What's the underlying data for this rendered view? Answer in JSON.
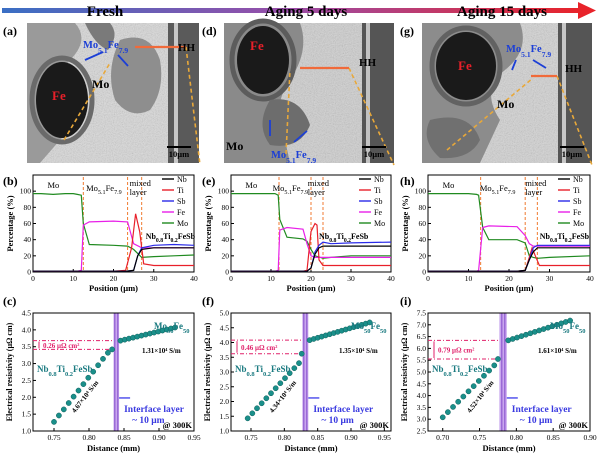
{
  "header": {
    "labels": [
      "Fresh",
      "Aging 5 days",
      "Aging 15 days"
    ],
    "arrow_gradient": [
      "#3a6fc4",
      "#8a4fa8",
      "#e8232a"
    ]
  },
  "panel_letters": [
    "(a)",
    "(b)",
    "(c)",
    "(d)",
    "(e)",
    "(f)",
    "(g)",
    "(h)",
    "(i)"
  ],
  "sem": [
    {
      "letter": "(a)",
      "phase_labels": {
        "fe": "Fe",
        "mo": "Mo",
        "mofe": "Mo5.1Fe7.9",
        "hh": "HH"
      },
      "scale_bar": "10μm",
      "colors": {
        "fe": "#e8202a",
        "mofe": "#1c3fd6",
        "line": "#f06a3a",
        "dashed": "#e8a83a"
      }
    },
    {
      "letter": "(d)",
      "phase_labels": {
        "fe": "Fe",
        "mo": "Mo",
        "mofe_top": "HH",
        "mofe": "Mo5.1Fe7.9"
      },
      "scale_bar": "10μm"
    },
    {
      "letter": "(g)",
      "phase_labels": {
        "fe": "Fe",
        "mo": "Mo",
        "mofe": "Mo5.1Fe7.9",
        "hh": "HH"
      },
      "scale_bar": "10μm"
    }
  ],
  "profiles": {
    "xlabel": "Position (μm)",
    "ylabel": "Percentage (%)",
    "xticks": [
      "0",
      "10",
      "20",
      "30",
      "40"
    ],
    "yticks": [
      "0",
      "20",
      "40",
      "60",
      "80",
      "100"
    ],
    "legend": [
      "Nb",
      "Ti",
      "Sb",
      "Fe",
      "Mo"
    ],
    "colors": {
      "Nb": "#000000",
      "Ti": "#e8202a",
      "Sb": "#2a2ae8",
      "Fe": "#e820e8",
      "Mo": "#208a20"
    },
    "phase_labels": {
      "mo": "Mo",
      "mofe": "Mo5.1Fe7.9",
      "mixed": "mixed\nlayer",
      "hh": "Nb0.8Ti0.2FeSb"
    }
  },
  "chart_data": [
    {
      "type": "line",
      "panel": "(b)",
      "xlabel": "Position (μm)",
      "ylabel": "Percentage (%)",
      "xlim": [
        0,
        40
      ],
      "ylim": [
        0,
        120
      ],
      "boundaries": [
        12.5,
        23.5,
        27
      ],
      "series": [
        {
          "name": "Mo",
          "x": [
            0,
            2,
            5,
            8,
            10,
            11,
            12,
            12.5,
            14,
            20,
            23.5,
            25,
            27,
            30,
            35,
            40
          ],
          "values": [
            97,
            97,
            96,
            97,
            97,
            96,
            95,
            60,
            34,
            33,
            32,
            28,
            18,
            19,
            20,
            21
          ]
        },
        {
          "name": "Fe",
          "x": [
            0,
            2,
            5,
            8,
            10,
            11,
            12,
            12.5,
            14,
            20,
            23.5,
            25,
            27,
            30,
            35,
            40
          ],
          "values": [
            1,
            1,
            1,
            1,
            1,
            1,
            2,
            58,
            62,
            63,
            62,
            35,
            30,
            30,
            30,
            30
          ]
        },
        {
          "name": "Ti",
          "x": [
            0,
            5,
            10,
            15,
            20,
            23,
            24.5,
            25.5,
            26.5,
            27.5,
            30,
            35,
            40
          ],
          "values": [
            1,
            1,
            1,
            1,
            1,
            2,
            30,
            72,
            50,
            10,
            8,
            8,
            8
          ]
        },
        {
          "name": "Sb",
          "x": [
            0,
            5,
            10,
            15,
            20,
            23,
            25,
            26,
            27,
            30,
            35,
            40
          ],
          "values": [
            1,
            1,
            1,
            1,
            1,
            1,
            2,
            20,
            30,
            33,
            34,
            33
          ]
        },
        {
          "name": "Nb",
          "x": [
            0,
            5,
            10,
            15,
            20,
            23,
            25,
            26,
            27,
            30,
            35,
            40
          ],
          "values": [
            1,
            1,
            1,
            1,
            1,
            1,
            2,
            20,
            28,
            30,
            30,
            30
          ]
        }
      ]
    },
    {
      "type": "line",
      "panel": "(e)",
      "xlabel": "Position (μm)",
      "ylabel": "Percentage (%)",
      "xlim": [
        0,
        40
      ],
      "ylim": [
        0,
        120
      ],
      "boundaries": [
        12,
        20,
        23
      ],
      "series": [
        {
          "name": "Mo",
          "x": [
            0,
            4,
            10,
            11,
            11.8,
            12.2,
            14,
            18,
            19,
            20,
            21,
            23,
            25,
            30,
            40
          ],
          "values": [
            97,
            97,
            97,
            97,
            95,
            65,
            43,
            41,
            38,
            28,
            20,
            17,
            18,
            20,
            20
          ]
        },
        {
          "name": "Fe",
          "x": [
            0,
            4,
            10,
            11,
            11.8,
            12.2,
            14,
            18,
            19,
            20,
            21,
            23,
            25,
            30,
            40
          ],
          "values": [
            1,
            1,
            1,
            1,
            2,
            52,
            55,
            53,
            35,
            20,
            18,
            18,
            18,
            18,
            18
          ]
        },
        {
          "name": "Ti",
          "x": [
            0,
            10,
            18,
            19,
            20,
            21,
            21.5,
            22,
            23,
            25,
            30,
            40
          ],
          "values": [
            1,
            1,
            1,
            2,
            50,
            60,
            58,
            15,
            8,
            8,
            8,
            8
          ]
        },
        {
          "name": "Sb",
          "x": [
            0,
            10,
            18,
            19,
            20,
            21,
            22,
            23,
            25,
            30,
            40
          ],
          "values": [
            1,
            1,
            1,
            1,
            5,
            25,
            33,
            37,
            35,
            36,
            37
          ]
        },
        {
          "name": "Nb",
          "x": [
            0,
            10,
            18,
            19,
            20,
            21,
            22,
            23,
            25,
            30,
            40
          ],
          "values": [
            1,
            1,
            1,
            1,
            5,
            22,
            30,
            32,
            32,
            32,
            32
          ]
        }
      ]
    },
    {
      "type": "line",
      "panel": "(h)",
      "xlabel": "Position (μm)",
      "ylabel": "Percentage (%)",
      "xlim": [
        0,
        40
      ],
      "ylim": [
        0,
        120
      ],
      "boundaries": [
        13,
        24,
        27
      ],
      "series": [
        {
          "name": "Mo",
          "x": [
            0,
            4,
            10,
            12,
            12.5,
            13.5,
            15,
            22,
            24,
            25,
            26,
            27,
            30,
            40
          ],
          "values": [
            97,
            97,
            97,
            96,
            95,
            55,
            40,
            40,
            36,
            20,
            18,
            17,
            18,
            20
          ]
        },
        {
          "name": "Fe",
          "x": [
            0,
            4,
            10,
            12,
            12.5,
            13.5,
            15,
            22,
            24,
            25,
            26,
            27,
            30,
            40
          ],
          "values": [
            1,
            1,
            1,
            1,
            2,
            55,
            57,
            56,
            45,
            35,
            32,
            32,
            32,
            32
          ]
        },
        {
          "name": "Ti",
          "x": [
            0,
            10,
            22,
            24,
            25,
            25.7,
            26.5,
            27.5,
            30,
            40
          ],
          "values": [
            1,
            1,
            1,
            2,
            18,
            30,
            20,
            8,
            8,
            8
          ]
        },
        {
          "name": "Sb",
          "x": [
            0,
            10,
            22,
            24,
            25,
            26,
            27,
            30,
            40
          ],
          "values": [
            1,
            1,
            1,
            2,
            15,
            30,
            33,
            33,
            33
          ]
        },
        {
          "name": "Nb",
          "x": [
            0,
            10,
            22,
            24,
            25,
            26,
            27,
            30,
            40
          ],
          "values": [
            1,
            1,
            1,
            2,
            15,
            25,
            30,
            30,
            30
          ]
        }
      ]
    },
    {
      "type": "scatter",
      "panel": "(c)",
      "xlabel": "Distance (mm)",
      "ylabel": "Electrical resistivity (μΩ cm)",
      "xlim": [
        0.72,
        0.95
      ],
      "ylim": [
        1.0,
        4.5
      ],
      "xticks": [
        "0.75",
        "0.80",
        "0.85",
        "0.90",
        "0.95"
      ],
      "yticks": [
        "1.0",
        "1.5",
        "2.0",
        "2.5",
        "3.0",
        "3.5",
        "4.0",
        "4.5"
      ],
      "interface_band": [
        0.835,
        0.843
      ],
      "jump_levels": [
        3.42,
        3.68
      ],
      "jump_label": "0.26 μΩ cm²",
      "left_label": "Nb0.8Ti0.2FeSb",
      "right_label": "Mo50Fe50",
      "left_slope": "4.67×10⁴ S/m",
      "right_slope": "1.31×10⁴ S/m",
      "interface_label": "Interface layer\n~ 10 μm",
      "temp_label": "@ 300K",
      "points": [
        {
          "x": 0.75,
          "y": 1.27
        },
        {
          "x": 0.757,
          "y": 1.46
        },
        {
          "x": 0.764,
          "y": 1.64
        },
        {
          "x": 0.771,
          "y": 1.83
        },
        {
          "x": 0.778,
          "y": 2.02
        },
        {
          "x": 0.785,
          "y": 2.2
        },
        {
          "x": 0.792,
          "y": 2.39
        },
        {
          "x": 0.799,
          "y": 2.58
        },
        {
          "x": 0.806,
          "y": 2.76
        },
        {
          "x": 0.813,
          "y": 2.95
        },
        {
          "x": 0.82,
          "y": 3.14
        },
        {
          "x": 0.827,
          "y": 3.32
        },
        {
          "x": 0.833,
          "y": 3.42
        },
        {
          "x": 0.845,
          "y": 3.68
        },
        {
          "x": 0.851,
          "y": 3.71
        },
        {
          "x": 0.857,
          "y": 3.74
        },
        {
          "x": 0.863,
          "y": 3.77
        },
        {
          "x": 0.869,
          "y": 3.8
        },
        {
          "x": 0.875,
          "y": 3.83
        },
        {
          "x": 0.881,
          "y": 3.86
        },
        {
          "x": 0.887,
          "y": 3.89
        },
        {
          "x": 0.893,
          "y": 3.92
        },
        {
          "x": 0.899,
          "y": 3.95
        },
        {
          "x": 0.905,
          "y": 3.98
        },
        {
          "x": 0.911,
          "y": 4.01
        },
        {
          "x": 0.917,
          "y": 4.04
        },
        {
          "x": 0.923,
          "y": 4.07
        }
      ]
    },
    {
      "type": "scatter",
      "panel": "(f)",
      "xlabel": "Distance (mm)",
      "ylabel": "Electrical resistivity (μΩ cm)",
      "xlim": [
        0.72,
        0.96
      ],
      "ylim": [
        1.0,
        5.0
      ],
      "xticks": [
        "0.75",
        "0.80",
        "0.85",
        "0.90",
        "0.95"
      ],
      "yticks": [
        "1.0",
        "1.5",
        "2.0",
        "2.5",
        "3.0",
        "3.5",
        "4.0",
        "4.5",
        "5.0"
      ],
      "interface_band": [
        0.827,
        0.836
      ],
      "jump_levels": [
        3.62,
        4.08
      ],
      "jump_label": "0.46 μΩ cm²",
      "left_label": "Nb0.8Ti0.2FeSb",
      "right_label": "Mo50Fe50",
      "left_slope": "4.34×10⁴ S/m",
      "right_slope": "1.35×10⁴ S/m",
      "interface_label": "Interface layer\n~ 10 μm",
      "temp_label": "@ 300K",
      "points": [
        {
          "x": 0.745,
          "y": 1.43
        },
        {
          "x": 0.752,
          "y": 1.6
        },
        {
          "x": 0.759,
          "y": 1.77
        },
        {
          "x": 0.766,
          "y": 1.94
        },
        {
          "x": 0.773,
          "y": 2.11
        },
        {
          "x": 0.78,
          "y": 2.28
        },
        {
          "x": 0.787,
          "y": 2.45
        },
        {
          "x": 0.794,
          "y": 2.62
        },
        {
          "x": 0.801,
          "y": 2.79
        },
        {
          "x": 0.808,
          "y": 2.96
        },
        {
          "x": 0.815,
          "y": 3.13
        },
        {
          "x": 0.822,
          "y": 3.3
        },
        {
          "x": 0.826,
          "y": 3.62
        },
        {
          "x": 0.838,
          "y": 4.08
        },
        {
          "x": 0.844,
          "y": 4.12
        },
        {
          "x": 0.85,
          "y": 4.16
        },
        {
          "x": 0.856,
          "y": 4.2
        },
        {
          "x": 0.862,
          "y": 4.24
        },
        {
          "x": 0.868,
          "y": 4.28
        },
        {
          "x": 0.874,
          "y": 4.32
        },
        {
          "x": 0.88,
          "y": 4.36
        },
        {
          "x": 0.886,
          "y": 4.4
        },
        {
          "x": 0.892,
          "y": 4.44
        },
        {
          "x": 0.898,
          "y": 4.48
        },
        {
          "x": 0.904,
          "y": 4.52
        },
        {
          "x": 0.91,
          "y": 4.56
        },
        {
          "x": 0.916,
          "y": 4.6
        },
        {
          "x": 0.922,
          "y": 4.64
        },
        {
          "x": 0.928,
          "y": 4.68
        }
      ]
    },
    {
      "type": "scatter",
      "panel": "(i)",
      "xlabel": "Distance (mm)",
      "ylabel": "Electrical resistivity (μΩ cm)",
      "xlim": [
        0.68,
        0.9
      ],
      "ylim": [
        2.5,
        7.5
      ],
      "xticks": [
        "0.70",
        "0.75",
        "0.80",
        "0.85",
        "0.90"
      ],
      "yticks": [
        "2.5",
        "3.0",
        "3.5",
        "4.0",
        "4.5",
        "5.0",
        "5.5",
        "6.0",
        "6.5",
        "7.0",
        "7.5"
      ],
      "interface_band": [
        0.777,
        0.787
      ],
      "jump_levels": [
        5.55,
        6.34
      ],
      "jump_label": "0.79 μΩ cm²",
      "left_label": "Nb0.8Ti0.2FeSb",
      "right_label": "Mo50Fe50",
      "left_slope": "4.52×10⁴ S/m",
      "right_slope": "1.61×10⁴ S/m",
      "interface_label": "Interface layer\n~ 10 μm",
      "temp_label": "@ 300K",
      "points": [
        {
          "x": 0.7,
          "y": 3.08
        },
        {
          "x": 0.707,
          "y": 3.3
        },
        {
          "x": 0.714,
          "y": 3.52
        },
        {
          "x": 0.721,
          "y": 3.74
        },
        {
          "x": 0.728,
          "y": 3.96
        },
        {
          "x": 0.735,
          "y": 4.18
        },
        {
          "x": 0.742,
          "y": 4.4
        },
        {
          "x": 0.749,
          "y": 4.62
        },
        {
          "x": 0.756,
          "y": 4.84
        },
        {
          "x": 0.763,
          "y": 5.06
        },
        {
          "x": 0.77,
          "y": 5.28
        },
        {
          "x": 0.775,
          "y": 5.55
        },
        {
          "x": 0.789,
          "y": 6.34
        },
        {
          "x": 0.795,
          "y": 6.4
        },
        {
          "x": 0.801,
          "y": 6.46
        },
        {
          "x": 0.807,
          "y": 6.52
        },
        {
          "x": 0.813,
          "y": 6.58
        },
        {
          "x": 0.819,
          "y": 6.64
        },
        {
          "x": 0.825,
          "y": 6.7
        },
        {
          "x": 0.831,
          "y": 6.76
        },
        {
          "x": 0.837,
          "y": 6.82
        },
        {
          "x": 0.843,
          "y": 6.88
        },
        {
          "x": 0.849,
          "y": 6.94
        },
        {
          "x": 0.855,
          "y": 7.0
        },
        {
          "x": 0.861,
          "y": 7.06
        },
        {
          "x": 0.867,
          "y": 7.12
        },
        {
          "x": 0.873,
          "y": 7.18
        }
      ]
    }
  ]
}
